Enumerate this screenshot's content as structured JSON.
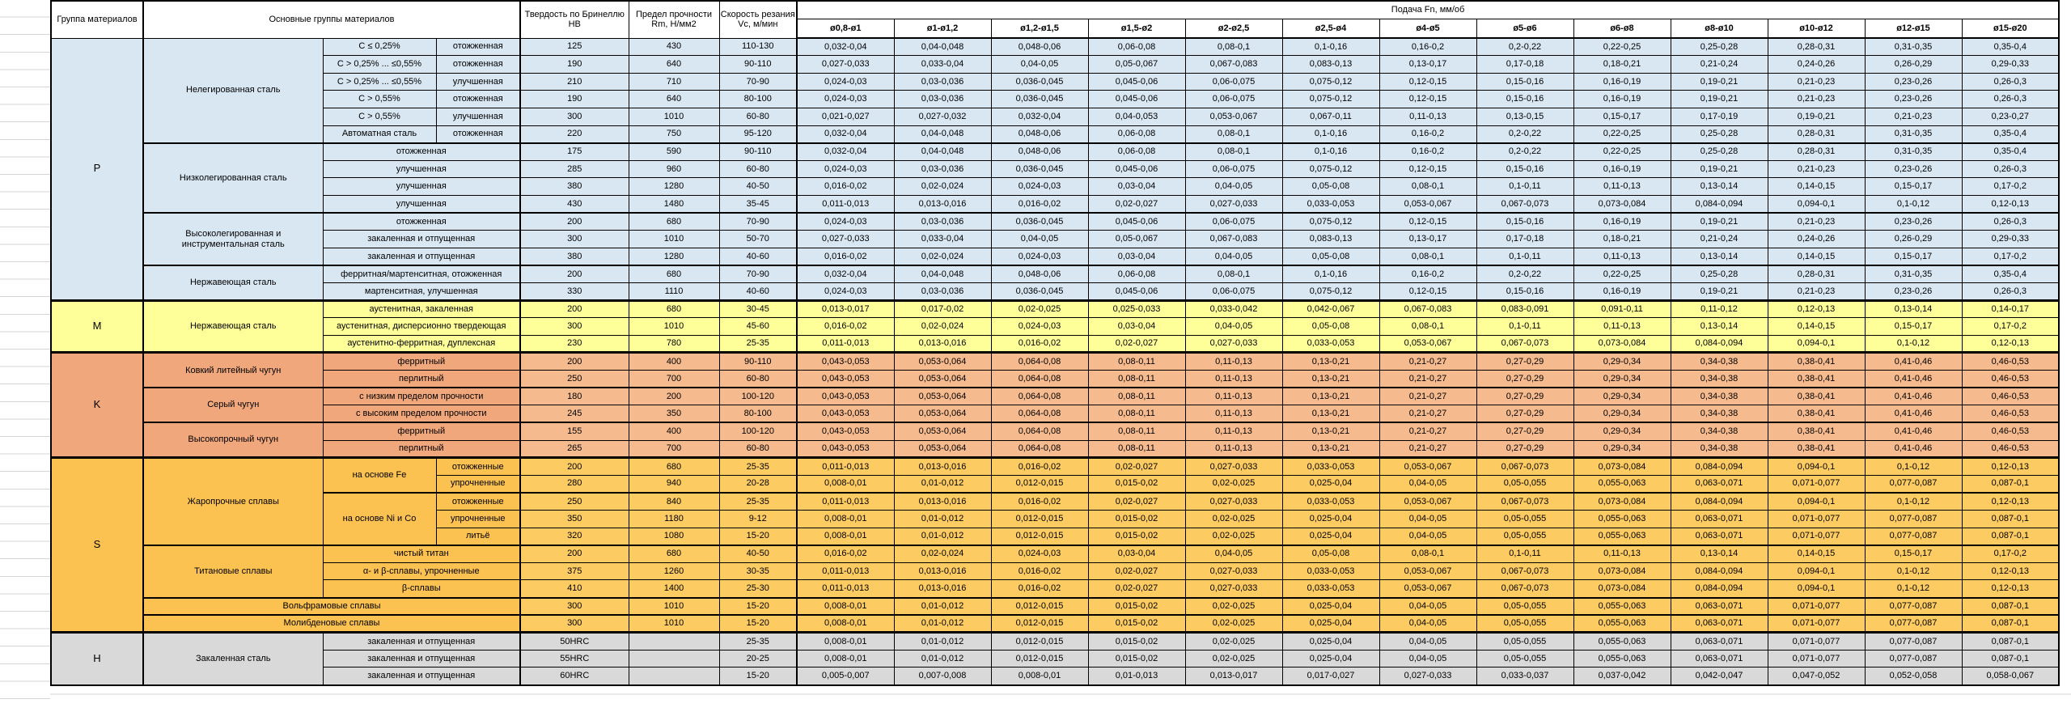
{
  "header": {
    "group": "Группа материалов",
    "materials": "Основные группы материалов",
    "hardness": "Твердость по Бринеллю HB",
    "strength": "Предел прочности Rm, Н/мм2",
    "speed": "Скорость резания Vc, м/мин",
    "feed": "Подача Fn, мм/об",
    "diameters": [
      "ø0,8-ø1",
      "ø1-ø1,2",
      "ø1,2-ø1,5",
      "ø1,5-ø2",
      "ø2-ø2,5",
      "ø2,5-ø4",
      "ø4-ø5",
      "ø5-ø6",
      "ø6-ø8",
      "ø8-ø10",
      "ø10-ø12",
      "ø12-ø15",
      "ø15-ø20"
    ]
  },
  "colors": {
    "p_fill": "#D9E7F3",
    "m_fill": "#FFFF99",
    "k_label_fill": "#F0A77B",
    "k_data_fill": "#F5BA8E",
    "s_label_fill": "#FBC252",
    "s_data_fill": "#FCCB62",
    "h_fill": "#D9D9D9",
    "grid": "#000000"
  },
  "feed_patterns": {
    "A": [
      "0,032-0,04",
      "0,04-0,048",
      "0,048-0,06",
      "0,06-0,08",
      "0,08-0,1",
      "0,1-0,16",
      "0,16-0,2",
      "0,2-0,22",
      "0,22-0,25",
      "0,25-0,28",
      "0,28-0,31",
      "0,31-0,35",
      "0,35-0,4"
    ],
    "B": [
      "0,027-0,033",
      "0,033-0,04",
      "0,04-0,05",
      "0,05-0,067",
      "0,067-0,083",
      "0,083-0,13",
      "0,13-0,17",
      "0,17-0,18",
      "0,18-0,21",
      "0,21-0,24",
      "0,24-0,26",
      "0,26-0,29",
      "0,29-0,33"
    ],
    "C": [
      "0,024-0,03",
      "0,03-0,036",
      "0,036-0,045",
      "0,045-0,06",
      "0,06-0,075",
      "0,075-0,12",
      "0,12-0,15",
      "0,15-0,16",
      "0,16-0,19",
      "0,19-0,21",
      "0,21-0,23",
      "0,23-0,26",
      "0,26-0,3"
    ],
    "D": [
      "0,021-0,027",
      "0,027-0,032",
      "0,032-0,04",
      "0,04-0,053",
      "0,053-0,067",
      "0,067-0,11",
      "0,11-0,13",
      "0,13-0,15",
      "0,15-0,17",
      "0,17-0,19",
      "0,19-0,21",
      "0,21-0,23",
      "0,23-0,27"
    ],
    "E": [
      "0,016-0,02",
      "0,02-0,024",
      "0,024-0,03",
      "0,03-0,04",
      "0,04-0,05",
      "0,05-0,08",
      "0,08-0,1",
      "0,1-0,11",
      "0,11-0,13",
      "0,13-0,14",
      "0,14-0,15",
      "0,15-0,17",
      "0,17-0,2"
    ],
    "F": [
      "0,011-0,013",
      "0,013-0,016",
      "0,016-0,02",
      "0,02-0,027",
      "0,027-0,033",
      "0,033-0,053",
      "0,053-0,067",
      "0,067-0,073",
      "0,073-0,084",
      "0,084-0,094",
      "0,094-0,1",
      "0,1-0,12",
      "0,12-0,13"
    ],
    "G": [
      "0,013-0,017",
      "0,017-0,02",
      "0,02-0,025",
      "0,025-0,033",
      "0,033-0,042",
      "0,042-0,067",
      "0,067-0,083",
      "0,083-0,091",
      "0,091-0,11",
      "0,11-0,12",
      "0,12-0,13",
      "0,13-0,14",
      "0,14-0,17"
    ],
    "K": [
      "0,043-0,053",
      "0,053-0,064",
      "0,064-0,08",
      "0,08-0,11",
      "0,11-0,13",
      "0,13-0,21",
      "0,21-0,27",
      "0,27-0,29",
      "0,29-0,34",
      "0,34-0,38",
      "0,38-0,41",
      "0,41-0,46",
      "0,46-0,53"
    ],
    "H8": [
      "0,008-0,01",
      "0,01-0,012",
      "0,012-0,015",
      "0,015-0,02",
      "0,02-0,025",
      "0,025-0,04",
      "0,04-0,05",
      "0,05-0,055",
      "0,055-0,063",
      "0,063-0,071",
      "0,071-0,077",
      "0,077-0,087",
      "0,087-0,1"
    ],
    "H6": [
      "0,005-0,007",
      "0,007-0,008",
      "0,008-0,01",
      "0,01-0,013",
      "0,013-0,017",
      "0,017-0,027",
      "0,027-0,033",
      "0,033-0,037",
      "0,037-0,042",
      "0,042-0,047",
      "0,047-0,052",
      "0,052-0,058",
      "0,058-0,067"
    ]
  },
  "groups": [
    {
      "letter": "P",
      "rows": [
        {
          "m": [
            {
              "t": "Нелегированная сталь",
              "rs": 6
            },
            {
              "t": "C ≤ 0,25%"
            },
            {
              "t": "отожженная"
            }
          ],
          "hb": "125",
          "rm": "430",
          "vc": "110-130",
          "f": "A"
        },
        {
          "m": [
            {
              "t": "C > 0,25% ... ≤0,55%"
            },
            {
              "t": "отожженная"
            }
          ],
          "hb": "190",
          "rm": "640",
          "vc": "90-110",
          "f": "B"
        },
        {
          "m": [
            {
              "t": "C > 0,25% ... ≤0,55%"
            },
            {
              "t": "улучшенная"
            }
          ],
          "hb": "210",
          "rm": "710",
          "vc": "70-90",
          "f": "C"
        },
        {
          "m": [
            {
              "t": "C > 0,55%"
            },
            {
              "t": "отожженная"
            }
          ],
          "hb": "190",
          "rm": "640",
          "vc": "80-100",
          "f": "C"
        },
        {
          "m": [
            {
              "t": "C > 0,55%"
            },
            {
              "t": "улучшенная"
            }
          ],
          "hb": "300",
          "rm": "1010",
          "vc": "60-80",
          "f": "D"
        },
        {
          "m": [
            {
              "t": "Автоматная сталь"
            },
            {
              "t": "отожженная"
            }
          ],
          "hb": "220",
          "rm": "750",
          "vc": "95-120",
          "f": "A"
        },
        {
          "tb": true,
          "m": [
            {
              "t": "Низколегированная сталь",
              "rs": 4
            },
            {
              "t": "отожженная",
              "cs": 2
            }
          ],
          "hb": "175",
          "rm": "590",
          "vc": "90-110",
          "f": "A"
        },
        {
          "m": [
            {
              "t": "улучшенная",
              "cs": 2
            }
          ],
          "hb": "285",
          "rm": "960",
          "vc": "60-80",
          "f": "C"
        },
        {
          "m": [
            {
              "t": "улучшенная",
              "cs": 2
            }
          ],
          "hb": "380",
          "rm": "1280",
          "vc": "40-50",
          "f": "E"
        },
        {
          "m": [
            {
              "t": "улучшенная",
              "cs": 2
            }
          ],
          "hb": "430",
          "rm": "1480",
          "vc": "35-45",
          "f": "F"
        },
        {
          "tb": true,
          "m": [
            {
              "t": "Высоколегированная и инструментальная сталь",
              "rs": 3
            },
            {
              "t": "отожженная",
              "cs": 2
            }
          ],
          "hb": "200",
          "rm": "680",
          "vc": "70-90",
          "f": "C"
        },
        {
          "m": [
            {
              "t": "закаленная и отпущенная",
              "cs": 2
            }
          ],
          "hb": "300",
          "rm": "1010",
          "vc": "50-70",
          "f": "B"
        },
        {
          "m": [
            {
              "t": "закаленная и отпущенная",
              "cs": 2
            }
          ],
          "hb": "380",
          "rm": "1280",
          "vc": "40-60",
          "f": "E"
        },
        {
          "tb": true,
          "m": [
            {
              "t": "Нержавеющая сталь",
              "rs": 2
            },
            {
              "t": "ферритная/мартенситная, отожженная",
              "cs": 2
            }
          ],
          "hb": "200",
          "rm": "680",
          "vc": "70-90",
          "f": "A"
        },
        {
          "m": [
            {
              "t": "мартенситная, улучшенная",
              "cs": 2
            }
          ],
          "hb": "330",
          "rm": "1110",
          "vc": "40-60",
          "f": "C"
        }
      ]
    },
    {
      "letter": "M",
      "rows": [
        {
          "m": [
            {
              "t": "Нержавеющая сталь",
              "rs": 3
            },
            {
              "t": "аустенитная, закаленная",
              "cs": 2
            }
          ],
          "hb": "200",
          "rm": "680",
          "vc": "30-45",
          "f": "G"
        },
        {
          "m": [
            {
              "t": "аустенитная, дисперсионно твердеющая",
              "cs": 2
            }
          ],
          "hb": "300",
          "rm": "1010",
          "vc": "45-60",
          "f": "E"
        },
        {
          "m": [
            {
              "t": "аустенитно-ферритная, дуплексная",
              "cs": 2
            }
          ],
          "hb": "230",
          "rm": "780",
          "vc": "25-35",
          "f": "F"
        }
      ]
    },
    {
      "letter": "K",
      "rows": [
        {
          "m": [
            {
              "t": "Ковкий литейный чугун",
              "rs": 2
            },
            {
              "t": "ферритный",
              "cs": 2
            }
          ],
          "hb": "200",
          "rm": "400",
          "vc": "90-110",
          "f": "K"
        },
        {
          "m": [
            {
              "t": "перлитный",
              "cs": 2
            }
          ],
          "hb": "250",
          "rm": "700",
          "vc": "60-80",
          "f": "K"
        },
        {
          "tb": true,
          "m": [
            {
              "t": "Серый чугун",
              "rs": 2
            },
            {
              "t": "с низким пределом прочности",
              "cs": 2
            }
          ],
          "hb": "180",
          "rm": "200",
          "vc": "100-120",
          "f": "K"
        },
        {
          "m": [
            {
              "t": "с высоким пределом прочности",
              "cs": 2
            }
          ],
          "hb": "245",
          "rm": "350",
          "vc": "80-100",
          "f": "K"
        },
        {
          "tb": true,
          "m": [
            {
              "t": "Высокопрочный чугун",
              "rs": 2
            },
            {
              "t": "ферритный",
              "cs": 2
            }
          ],
          "hb": "155",
          "rm": "400",
          "vc": "100-120",
          "f": "K"
        },
        {
          "m": [
            {
              "t": "перлитный",
              "cs": 2
            }
          ],
          "hb": "265",
          "rm": "700",
          "vc": "60-80",
          "f": "K"
        }
      ]
    },
    {
      "letter": "S",
      "rows": [
        {
          "m": [
            {
              "t": "Жаропрочные сплавы",
              "rs": 5
            },
            {
              "t": "на основе Fe",
              "rs": 2
            },
            {
              "t": "отожженные"
            }
          ],
          "hb": "200",
          "rm": "680",
          "vc": "25-35",
          "f": "F"
        },
        {
          "m": [
            {
              "t": "упрочненные"
            }
          ],
          "hb": "280",
          "rm": "940",
          "vc": "20-28",
          "f": "H8"
        },
        {
          "tb": true,
          "m": [
            {
              "t": "на основе Ni и Co",
              "rs": 3
            },
            {
              "t": "отожженные"
            }
          ],
          "hb": "250",
          "rm": "840",
          "vc": "25-35",
          "f": "F"
        },
        {
          "m": [
            {
              "t": "упрочненные"
            }
          ],
          "hb": "350",
          "rm": "1180",
          "vc": "9-12",
          "f": "H8"
        },
        {
          "m": [
            {
              "t": "литьё"
            }
          ],
          "hb": "320",
          "rm": "1080",
          "vc": "15-20",
          "f": "H8"
        },
        {
          "tb": true,
          "m": [
            {
              "t": "Титановые сплавы",
              "rs": 3
            },
            {
              "t": "чистый титан",
              "cs": 2
            }
          ],
          "hb": "200",
          "rm": "680",
          "vc": "40-50",
          "f": "E"
        },
        {
          "m": [
            {
              "t": "α- и β-сплавы, упрочненные",
              "cs": 2
            }
          ],
          "hb": "375",
          "rm": "1260",
          "vc": "30-35",
          "f": "F"
        },
        {
          "m": [
            {
              "t": "β-сплавы",
              "cs": 2
            }
          ],
          "hb": "410",
          "rm": "1400",
          "vc": "25-30",
          "f": "F"
        },
        {
          "tb": true,
          "m": [
            {
              "t": "Вольфрамовые сплавы",
              "cs": 3
            }
          ],
          "hb": "300",
          "rm": "1010",
          "vc": "15-20",
          "f": "H8"
        },
        {
          "tb": true,
          "m": [
            {
              "t": "Молибденовые сплавы",
              "cs": 3
            }
          ],
          "hb": "300",
          "rm": "1010",
          "vc": "15-20",
          "f": "H8"
        }
      ]
    },
    {
      "letter": "H",
      "rows": [
        {
          "m": [
            {
              "t": "Закаленная сталь",
              "rs": 3
            },
            {
              "t": "закаленная и отпущенная",
              "cs": 2
            }
          ],
          "hb": "50HRC",
          "rm": "",
          "vc": "25-35",
          "f": "H8"
        },
        {
          "m": [
            {
              "t": "закаленная и отпущенная",
              "cs": 2
            }
          ],
          "hb": "55HRC",
          "rm": "",
          "vc": "20-25",
          "f": "H8"
        },
        {
          "m": [
            {
              "t": "закаленная и отпущенная",
              "cs": 2
            }
          ],
          "hb": "60HRC",
          "rm": "",
          "vc": "15-20",
          "f": "H6"
        }
      ]
    }
  ]
}
